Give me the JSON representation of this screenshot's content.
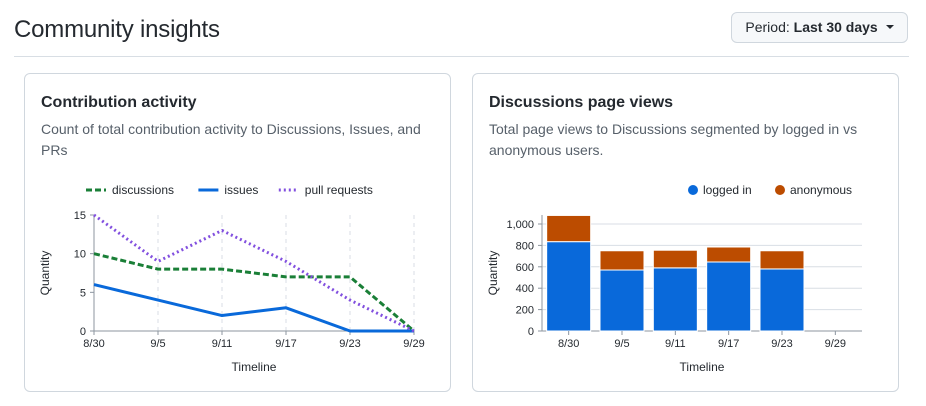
{
  "header": {
    "title": "Community insights",
    "period_prefix": "Period:",
    "period_value": "Last 30 days"
  },
  "cards": [
    {
      "title": "Contribution activity",
      "description": "Count of total contribution activity to Discussions, Issues, and PRs"
    },
    {
      "title": "Discussions page views",
      "description": "Total page views to Discussions segmented by logged in vs anonymous users."
    }
  ],
  "chart_data": [
    {
      "type": "line",
      "x": [
        "8/30",
        "9/5",
        "9/11",
        "9/17",
        "9/23",
        "9/29"
      ],
      "xlabel": "Timeline",
      "ylabel": "Quantity",
      "ylim": [
        0,
        15
      ],
      "yticks": [
        "0",
        "5",
        "10",
        "15"
      ],
      "legend_position": "top",
      "grid": "vertical dashed",
      "series": [
        {
          "name": "discussions",
          "color": "#1a7f37",
          "style": "dashed",
          "values": [
            10,
            8,
            8,
            7,
            7,
            0
          ]
        },
        {
          "name": "issues",
          "color": "#0969da",
          "style": "solid",
          "values": [
            6,
            4,
            2,
            3,
            0,
            0
          ]
        },
        {
          "name": "pull requests",
          "color": "#8250df",
          "style": "dotted",
          "values": [
            15,
            9,
            13,
            9,
            4,
            0
          ]
        }
      ]
    },
    {
      "type": "bar",
      "stacked": true,
      "categories": [
        "8/30",
        "9/5",
        "9/11",
        "9/17",
        "9/23",
        "9/29"
      ],
      "xlabel": "Timeline",
      "ylabel": "Quantity",
      "ylim": [
        0,
        1000
      ],
      "yticks": [
        "0",
        "200",
        "400",
        "600",
        "800",
        "1,000"
      ],
      "legend_position": "top-right",
      "grid": "horizontal",
      "series": [
        {
          "name": "logged in",
          "color": "#0969da",
          "values": [
            835,
            570,
            590,
            645,
            580,
            0
          ]
        },
        {
          "name": "anonymous",
          "color": "#bc4c00",
          "values": [
            245,
            180,
            165,
            140,
            170,
            0
          ]
        }
      ]
    }
  ]
}
